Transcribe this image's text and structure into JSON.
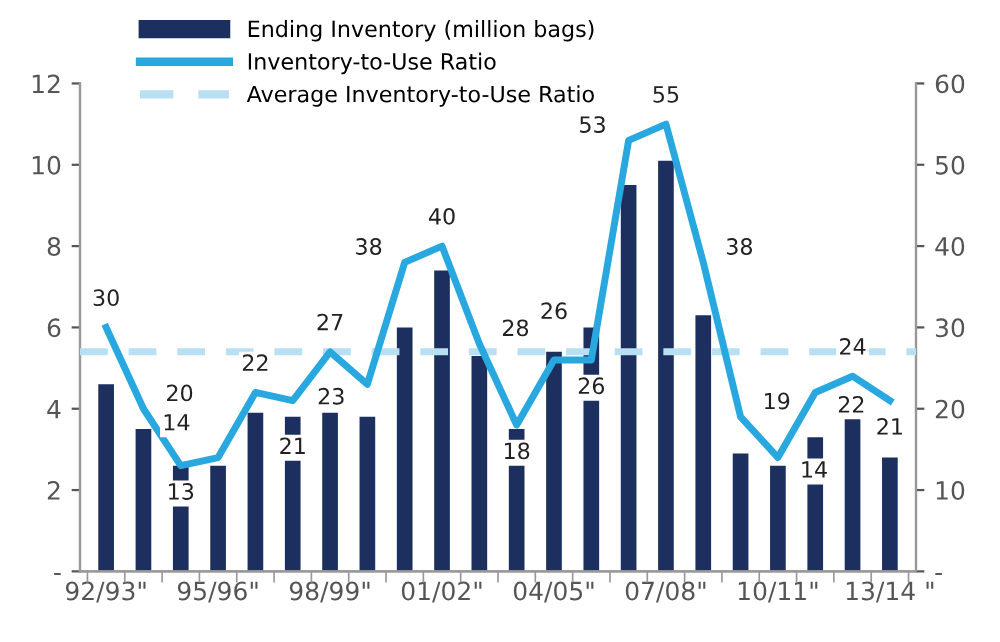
{
  "chart_data": {
    "type": "bar",
    "categories": [
      "92/93\"",
      null,
      null,
      "95/96\"",
      null,
      null,
      "98/99\"",
      null,
      null,
      "01/02\"",
      null,
      null,
      "04/05\"",
      null,
      null,
      "07/08\"",
      null,
      null,
      "10/11\"",
      null,
      null,
      "13/14 \""
    ],
    "series": [
      {
        "name": "Ending Inventory (million bags)",
        "type": "bar",
        "color": "#1c2f5e",
        "values": [
          4.6,
          3.5,
          2.6,
          2.6,
          3.9,
          3.8,
          3.9,
          3.8,
          6.0,
          7.4,
          5.3,
          3.5,
          5.4,
          6.0,
          9.5,
          10.1,
          6.3,
          2.9,
          2.6,
          3.3,
          3.8,
          2.8
        ]
      },
      {
        "name": "Inventory-to-Use Ratio",
        "type": "line",
        "axis": "y2",
        "color": "#29a8e0",
        "data_labels": true,
        "values": [
          30,
          20,
          13,
          14,
          22,
          21,
          27,
          23,
          38,
          40,
          28,
          18,
          26,
          26,
          53,
          55,
          38,
          19,
          14,
          22,
          24,
          21
        ]
      }
    ],
    "ref_lines": [
      {
        "axis": "y2",
        "value": 27,
        "label": "Average Inventory-to-Use Ratio",
        "color": "#b9dff2",
        "line_style": "dashed"
      }
    ],
    "ylim": [
      0,
      12
    ],
    "yticks": [
      {
        "value": 0,
        "label": "-"
      },
      2,
      4,
      6,
      8,
      10,
      12
    ],
    "y2lim": [
      0,
      60
    ],
    "y2ticks": [
      {
        "value": 0,
        "label": "-"
      },
      10,
      20,
      30,
      40,
      50,
      60
    ],
    "legend": "top left",
    "grid": false
  }
}
